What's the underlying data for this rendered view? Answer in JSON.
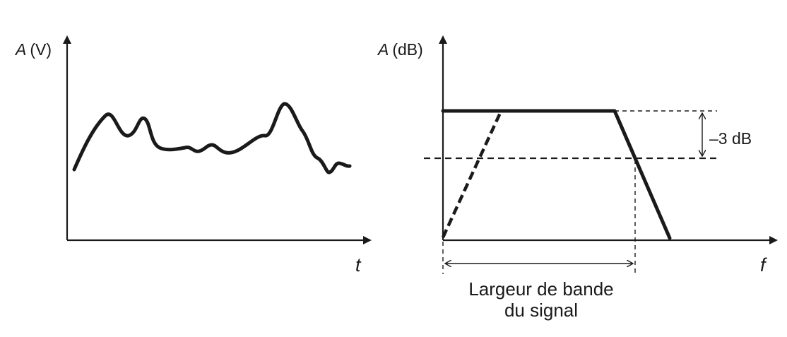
{
  "left_plot": {
    "y_label_symbol": "A",
    "y_label_unit": "(V)",
    "x_label": "t"
  },
  "right_plot": {
    "y_label_symbol": "A",
    "y_label_unit": "(dB)",
    "x_label": "f",
    "attenuation_label": "–3 dB",
    "bandwidth_label_line1": "Largeur de bande",
    "bandwidth_label_line2": "du signal"
  },
  "colors": {
    "ink": "#1a1a1a",
    "background": "#ffffff"
  }
}
